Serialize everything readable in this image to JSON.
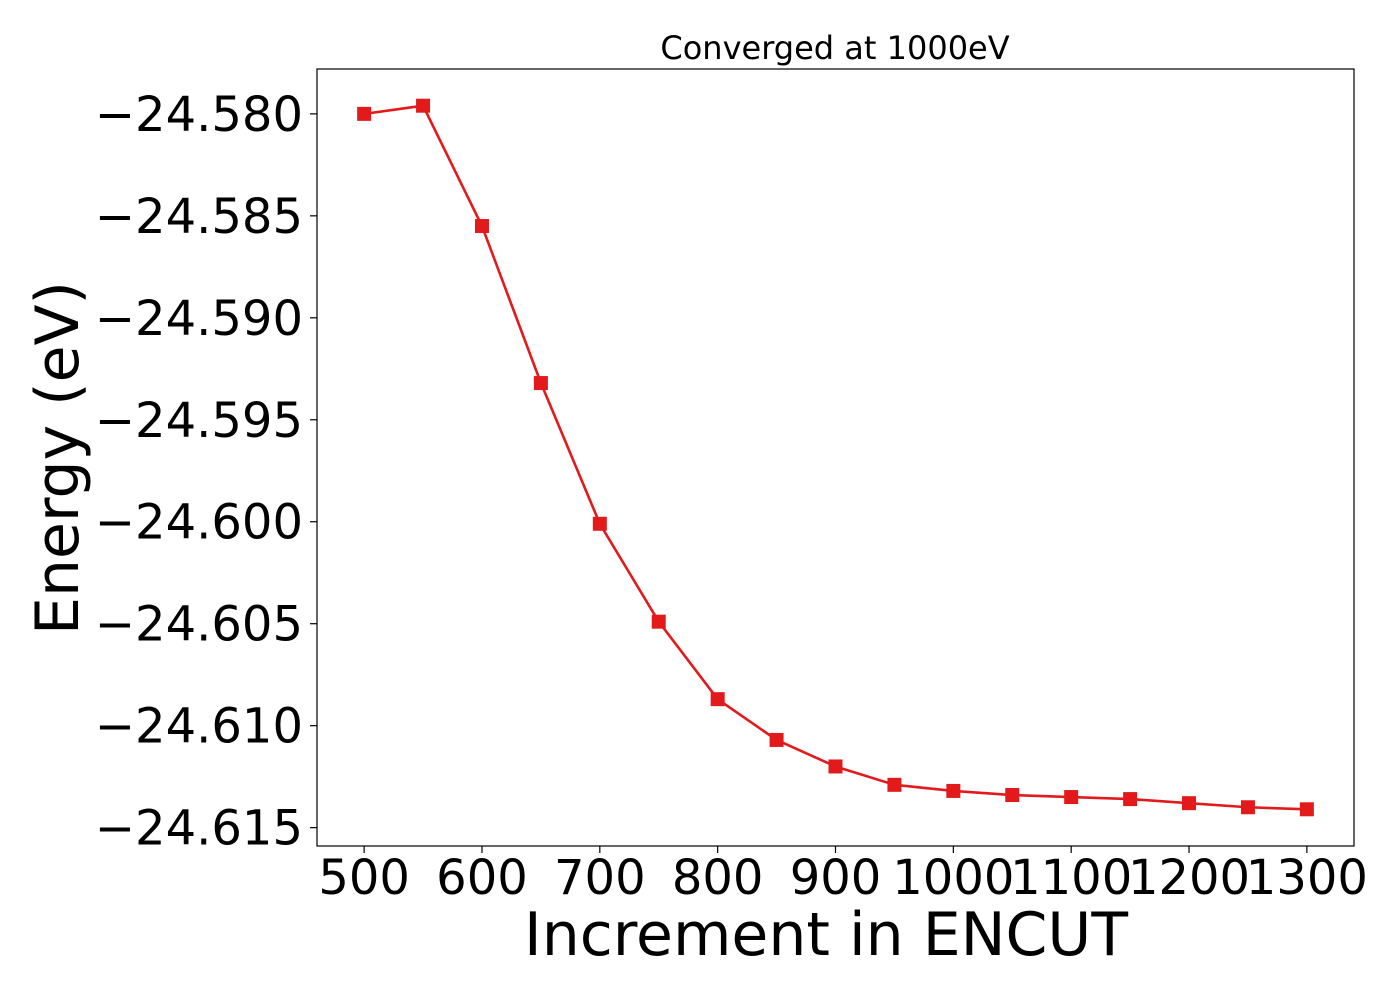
{
  "chart_data": {
    "type": "line",
    "title": "Converged at 1000eV",
    "xlabel": "Increment in ENCUT",
    "ylabel": "Energy (eV)",
    "x": [
      500,
      550,
      600,
      650,
      700,
      750,
      800,
      850,
      900,
      950,
      1000,
      1050,
      1100,
      1150,
      1200,
      1250,
      1300
    ],
    "series": [
      {
        "values": [
          -24.58,
          -24.5796,
          -24.5855,
          -24.5932,
          -24.6001,
          -24.6049,
          -24.6087,
          -24.6107,
          -24.612,
          -24.6129,
          -24.6132,
          -24.6134,
          -24.6135,
          -24.6136,
          -24.6138,
          -24.614,
          -24.6141
        ],
        "color": "#e31a1c",
        "marker": "square"
      }
    ],
    "xticks": [
      500,
      600,
      700,
      800,
      900,
      1000,
      1100,
      1200,
      1300
    ],
    "xtick_labels": [
      "500",
      "600",
      "700",
      "800",
      "900",
      "1000",
      "1100",
      "1200",
      "1300"
    ],
    "yticks": [
      -24.58,
      -24.585,
      -24.59,
      -24.595,
      -24.6,
      -24.605,
      -24.61,
      -24.615
    ],
    "ytick_labels": [
      "−24.580",
      "−24.585",
      "−24.590",
      "−24.595",
      "−24.600",
      "−24.605",
      "−24.610",
      "−24.615"
    ],
    "xlim": [
      460,
      1340
    ],
    "ylim": [
      -24.6159,
      -24.5778
    ],
    "grid": false,
    "legend": "none"
  }
}
